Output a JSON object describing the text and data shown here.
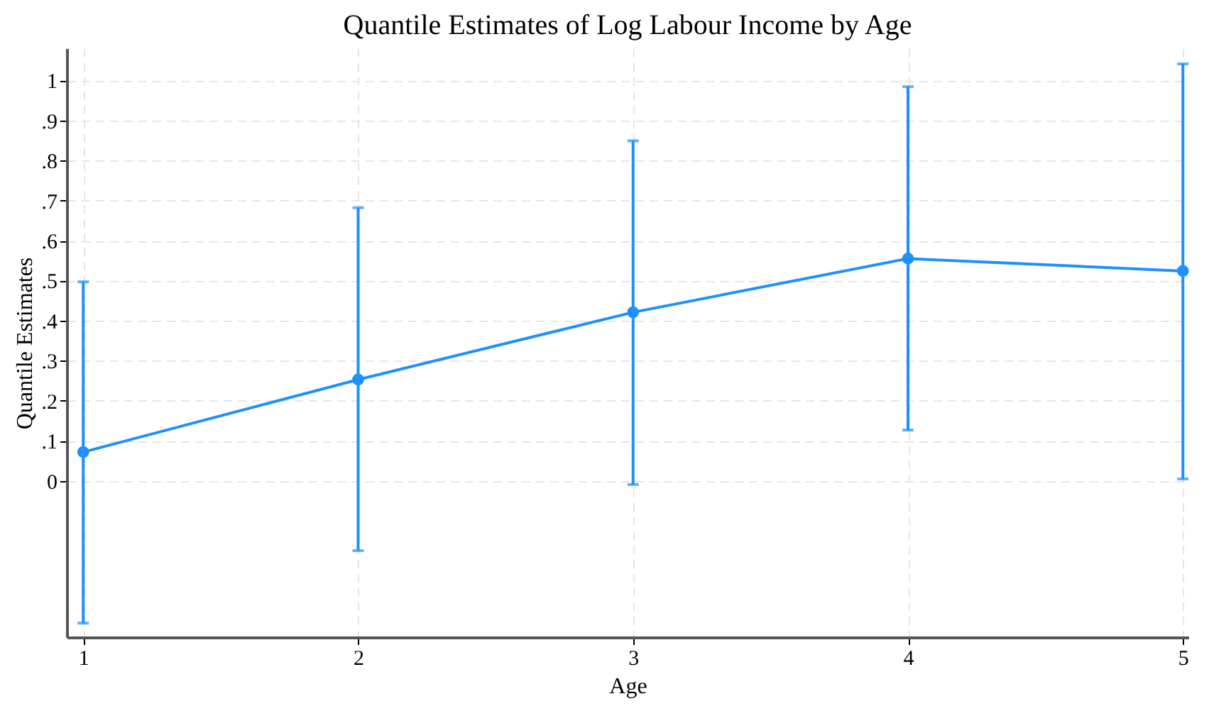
{
  "chart_data": {
    "type": "line",
    "title": "Quantile Estimates of Log Labour Income by Age",
    "xlabel": "Age",
    "ylabel": "Quantile Estimates",
    "x": [
      1,
      2,
      3,
      4,
      5
    ],
    "series": [
      {
        "color": "#1e90ff",
        "values": [
          0.072,
          0.253,
          0.421,
          0.555,
          0.524
        ],
        "errors": [
          [
            -0.355,
            0.497
          ],
          [
            -0.174,
            0.682
          ],
          [
            -0.009,
            0.849
          ],
          [
            0.127,
            0.984
          ],
          [
            0.005,
            1.041
          ]
        ]
      }
    ],
    "xlim": [
      0.94,
      5.02
    ],
    "xticks": [
      1,
      2,
      3,
      4,
      5
    ],
    "ylim": [
      -0.39,
      1.08
    ],
    "yticks": [
      {
        "value": 0,
        "label": "0"
      },
      {
        "value": 0.1,
        "label": ".1"
      },
      {
        "value": 0.2,
        "label": ".2"
      },
      {
        "value": 0.3,
        "label": ".3"
      },
      {
        "value": 0.4,
        "label": ".4"
      },
      {
        "value": 0.5,
        "label": ".5"
      },
      {
        "value": 0.6,
        "label": ".6"
      },
      {
        "value": 0.7,
        "label": ".7"
      },
      {
        "value": 0.8,
        "label": ".8"
      },
      {
        "value": 0.9,
        "label": ".9"
      },
      {
        "value": 1,
        "label": "1"
      }
    ],
    "grid": true,
    "marker": "circle",
    "line_style": "solid"
  }
}
